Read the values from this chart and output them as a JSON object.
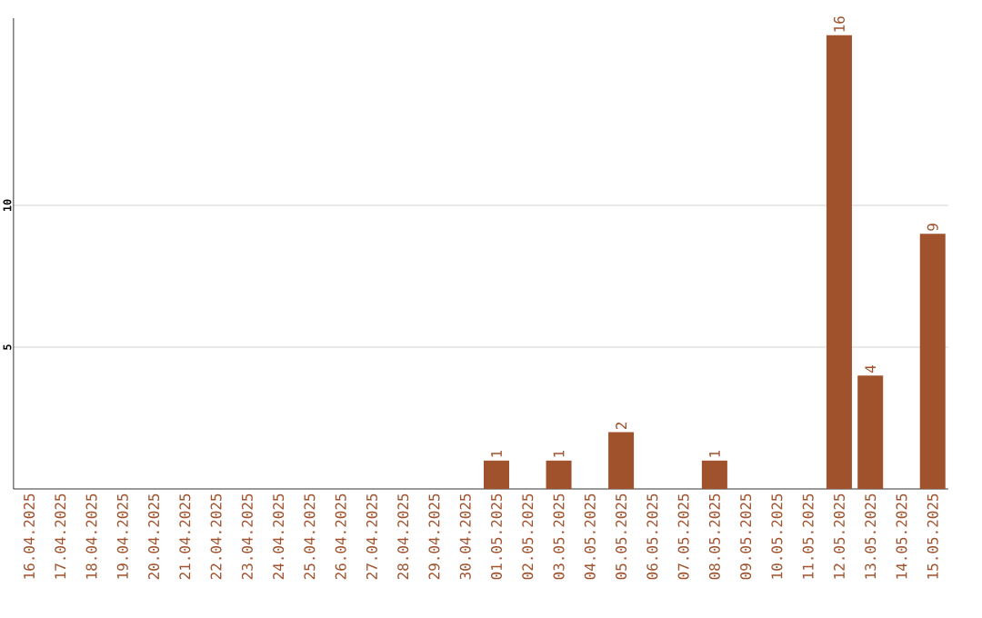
{
  "chart_data": {
    "type": "bar",
    "categories": [
      "16.04.2025",
      "17.04.2025",
      "18.04.2025",
      "19.04.2025",
      "20.04.2025",
      "21.04.2025",
      "22.04.2025",
      "23.04.2025",
      "24.04.2025",
      "25.04.2025",
      "26.04.2025",
      "27.04.2025",
      "28.04.2025",
      "29.04.2025",
      "30.04.2025",
      "01.05.2025",
      "02.05.2025",
      "03.05.2025",
      "04.05.2025",
      "05.05.2025",
      "06.05.2025",
      "07.05.2025",
      "08.05.2025",
      "09.05.2025",
      "10.05.2025",
      "11.05.2025",
      "12.05.2025",
      "13.05.2025",
      "14.05.2025",
      "15.05.2025"
    ],
    "values": [
      0,
      0,
      0,
      0,
      0,
      0,
      0,
      0,
      0,
      0,
      0,
      0,
      0,
      0,
      0,
      1,
      0,
      1,
      0,
      2,
      0,
      0,
      1,
      0,
      0,
      0,
      16,
      4,
      0,
      9
    ],
    "value_labels": [
      null,
      null,
      null,
      null,
      null,
      null,
      null,
      null,
      null,
      null,
      null,
      null,
      null,
      null,
      null,
      "1",
      null,
      "1",
      null,
      "2",
      null,
      null,
      "1",
      null,
      null,
      null,
      "16",
      "4",
      null,
      "9"
    ],
    "color": "#a0522d",
    "ylim": [
      0,
      16.6
    ],
    "yticks": [
      5,
      10
    ],
    "grid": "y"
  }
}
